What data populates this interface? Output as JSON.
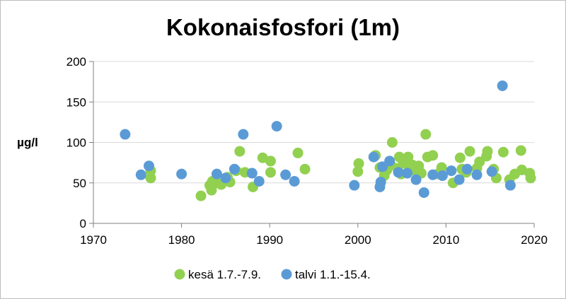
{
  "chart_data": {
    "type": "scatter",
    "title": "Kokonaisfosfori (1m)",
    "xlabel": "",
    "ylabel": "µg/l",
    "xlim": [
      1970,
      2020
    ],
    "ylim": [
      0,
      200
    ],
    "x_ticks": [
      "1970",
      "1980",
      "1990",
      "2000",
      "2010",
      "2020"
    ],
    "y_ticks": [
      "0",
      "50",
      "100",
      "150",
      "200"
    ],
    "grid": "horizontal",
    "legend_position": "bottom",
    "series": [
      {
        "name": "kesä 1.7.-7.9.",
        "color": "#92d050",
        "points": [
          [
            1976.5,
            65
          ],
          [
            1976.5,
            56
          ],
          [
            1982.2,
            34
          ],
          [
            1983.2,
            47
          ],
          [
            1983.4,
            41
          ],
          [
            1983.5,
            52
          ],
          [
            1984.0,
            50
          ],
          [
            1984.5,
            48
          ],
          [
            1985.2,
            57
          ],
          [
            1985.5,
            51
          ],
          [
            1986.2,
            65
          ],
          [
            1986.6,
            89
          ],
          [
            1987.2,
            63
          ],
          [
            1988.1,
            45
          ],
          [
            1989.2,
            81
          ],
          [
            1990.1,
            77
          ],
          [
            1990.1,
            63
          ],
          [
            1993.2,
            87
          ],
          [
            1994.0,
            67
          ],
          [
            2000.0,
            64
          ],
          [
            2000.1,
            74
          ],
          [
            2002.0,
            84
          ],
          [
            2002.5,
            69
          ],
          [
            2003.0,
            59
          ],
          [
            2003.3,
            66
          ],
          [
            2003.7,
            73
          ],
          [
            2003.9,
            100
          ],
          [
            2004.5,
            68
          ],
          [
            2004.7,
            82
          ],
          [
            2004.9,
            61
          ],
          [
            2005.1,
            78
          ],
          [
            2005.4,
            74
          ],
          [
            2005.7,
            82
          ],
          [
            2005.9,
            67
          ],
          [
            2006.2,
            72
          ],
          [
            2006.5,
            65
          ],
          [
            2006.9,
            71
          ],
          [
            2007.2,
            62
          ],
          [
            2007.7,
            110
          ],
          [
            2007.9,
            82
          ],
          [
            2008.5,
            84
          ],
          [
            2009.1,
            61
          ],
          [
            2009.5,
            69
          ],
          [
            2010.8,
            50
          ],
          [
            2011.6,
            81
          ],
          [
            2011.8,
            67
          ],
          [
            2012.3,
            63
          ],
          [
            2012.7,
            89
          ],
          [
            2013.5,
            68
          ],
          [
            2013.8,
            76
          ],
          [
            2014.6,
            83
          ],
          [
            2014.7,
            89
          ],
          [
            2015.4,
            67
          ],
          [
            2015.7,
            56
          ],
          [
            2016.5,
            88
          ],
          [
            2017.2,
            54
          ],
          [
            2017.8,
            61
          ],
          [
            2018.5,
            90
          ],
          [
            2018.6,
            66
          ],
          [
            2019.5,
            62
          ],
          [
            2019.6,
            56
          ]
        ]
      },
      {
        "name": "talvi 1.1.-15.4.",
        "color": "#5b9bd5",
        "points": [
          [
            1973.6,
            110
          ],
          [
            1975.4,
            60
          ],
          [
            1976.3,
            71
          ],
          [
            1980.0,
            61
          ],
          [
            1984.0,
            61
          ],
          [
            1985.0,
            56
          ],
          [
            1986.0,
            67
          ],
          [
            1987.0,
            110
          ],
          [
            1988.0,
            62
          ],
          [
            1988.8,
            52
          ],
          [
            1990.8,
            120
          ],
          [
            1991.8,
            60
          ],
          [
            1992.8,
            52
          ],
          [
            1999.6,
            47
          ],
          [
            2001.8,
            82
          ],
          [
            2002.5,
            45
          ],
          [
            2002.6,
            51
          ],
          [
            2002.8,
            70
          ],
          [
            2003.6,
            77
          ],
          [
            2004.6,
            63
          ],
          [
            2005.6,
            62
          ],
          [
            2006.6,
            54
          ],
          [
            2007.5,
            38
          ],
          [
            2008.5,
            60
          ],
          [
            2009.6,
            59
          ],
          [
            2010.6,
            65
          ],
          [
            2011.5,
            54
          ],
          [
            2012.4,
            67
          ],
          [
            2013.5,
            60
          ],
          [
            2015.2,
            64
          ],
          [
            2016.4,
            170
          ],
          [
            2017.3,
            47
          ]
        ]
      }
    ]
  }
}
